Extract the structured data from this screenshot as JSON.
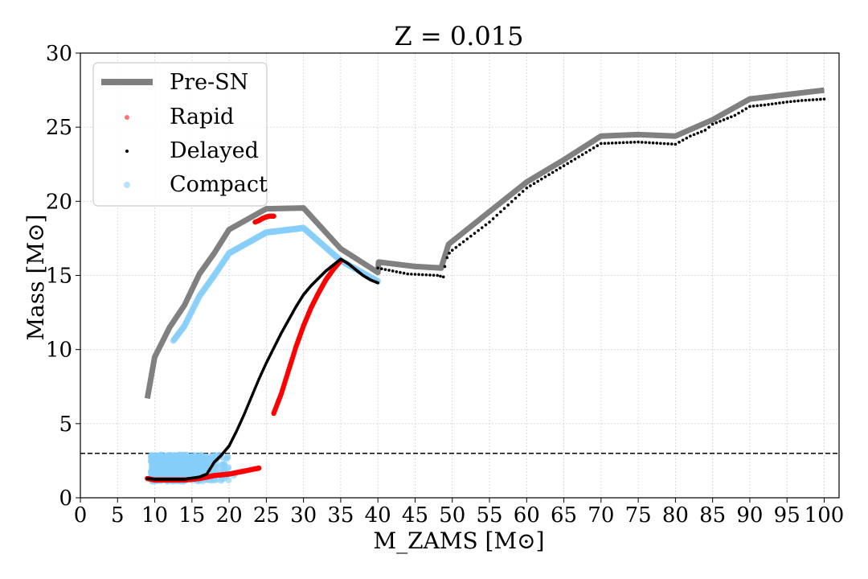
{
  "chart_data": {
    "type": "line",
    "title": "Z = 0.015",
    "xlabel": "M_ZAMS [M⊙]",
    "ylabel": "Mass [M⊙]",
    "xlim": [
      0,
      102
    ],
    "ylim": [
      0,
      30
    ],
    "xticks": [
      0,
      5,
      10,
      15,
      20,
      25,
      30,
      35,
      40,
      45,
      50,
      55,
      60,
      65,
      70,
      75,
      80,
      85,
      90,
      95,
      100
    ],
    "yticks": [
      0,
      5,
      10,
      15,
      20,
      25,
      30
    ],
    "grid": true,
    "legend_position": "top-left",
    "reference_line": {
      "y": 3,
      "style": "dashed",
      "color": "#000000"
    },
    "series": [
      {
        "name": "Pre-SN",
        "kind": "line",
        "color": "#808080",
        "points": [
          [
            9,
            6.7
          ],
          [
            10,
            9.5
          ],
          [
            12,
            11.5
          ],
          [
            14,
            13
          ],
          [
            16,
            15.1
          ],
          [
            18,
            16.5
          ],
          [
            20,
            18.1
          ],
          [
            25,
            19.5
          ],
          [
            30,
            19.55
          ],
          [
            35,
            16.8
          ],
          [
            40,
            15.2
          ],
          [
            40.1,
            15.9
          ],
          [
            45,
            15.6
          ],
          [
            48.5,
            15.5
          ],
          [
            49.5,
            17.1
          ],
          [
            55,
            19.3
          ],
          [
            60,
            21.3
          ],
          [
            65,
            22.8
          ],
          [
            70,
            24.4
          ],
          [
            75,
            24.5
          ],
          [
            80,
            24.4
          ],
          [
            85,
            25.5
          ],
          [
            90,
            26.9
          ],
          [
            95,
            27.2
          ],
          [
            100,
            27.5
          ]
        ]
      },
      {
        "name": "Rapid",
        "kind": "scatter",
        "color": "#ff0000",
        "segments": [
          [
            [
              9,
              1.3
            ],
            [
              10,
              1.2
            ],
            [
              12,
              1.2
            ],
            [
              14,
              1.2
            ],
            [
              16,
              1.3
            ],
            [
              18,
              1.5
            ],
            [
              20,
              1.6
            ],
            [
              22,
              1.8
            ],
            [
              24,
              2.0
            ]
          ],
          [
            [
              23.5,
              18.6
            ],
            [
              24,
              18.7
            ],
            [
              24.5,
              18.85
            ],
            [
              25,
              18.95
            ],
            [
              25.5,
              19.0
            ],
            [
              26,
              19.0
            ]
          ],
          [
            [
              26,
              5.7
            ],
            [
              27,
              7.0
            ],
            [
              28,
              8.6
            ],
            [
              29,
              10.2
            ],
            [
              30,
              11.6
            ],
            [
              31,
              12.8
            ],
            [
              32,
              13.8
            ],
            [
              33,
              14.7
            ],
            [
              34,
              15.4
            ],
            [
              35,
              16.0
            ]
          ]
        ]
      },
      {
        "name": "Delayed",
        "kind": "scatter",
        "color": "#000000",
        "segments": [
          [
            [
              9,
              1.3
            ],
            [
              10,
              1.25
            ],
            [
              12,
              1.25
            ],
            [
              14,
              1.25
            ],
            [
              16,
              1.4
            ],
            [
              17,
              1.6
            ],
            [
              18,
              2.4
            ],
            [
              19,
              2.9
            ],
            [
              20,
              3.5
            ],
            [
              21,
              4.5
            ],
            [
              22,
              5.6
            ],
            [
              23,
              6.8
            ],
            [
              24,
              8.0
            ],
            [
              25,
              9.1
            ],
            [
              26,
              10.1
            ],
            [
              27,
              11.1
            ],
            [
              28,
              12.0
            ],
            [
              29,
              12.9
            ],
            [
              30,
              13.7
            ],
            [
              31,
              14.3
            ],
            [
              32,
              14.8
            ],
            [
              33,
              15.3
            ],
            [
              34,
              15.7
            ],
            [
              35,
              16.1
            ],
            [
              36,
              15.8
            ],
            [
              37,
              15.4
            ],
            [
              38,
              15.0
            ],
            [
              39,
              14.7
            ],
            [
              40,
              14.5
            ]
          ],
          [
            [
              40,
              15.5
            ],
            [
              42,
              15.3
            ],
            [
              44,
              15.1
            ],
            [
              46,
              15.05
            ],
            [
              48,
              15.0
            ],
            [
              48.8,
              14.9
            ],
            [
              49,
              15.6
            ],
            [
              49.3,
              16.2
            ],
            [
              49.6,
              16.5
            ],
            [
              50,
              16.7
            ],
            [
              55,
              18.6
            ],
            [
              60,
              20.9
            ],
            [
              65,
              22.4
            ],
            [
              70,
              23.9
            ],
            [
              75,
              24.0
            ],
            [
              80,
              23.85
            ],
            [
              82,
              24.4
            ],
            [
              84,
              24.8
            ],
            [
              85,
              25.2
            ],
            [
              88,
              25.8
            ],
            [
              90,
              26.4
            ],
            [
              92,
              26.5
            ],
            [
              95,
              26.7
            ],
            [
              97,
              26.8
            ],
            [
              100,
              26.9
            ]
          ]
        ]
      },
      {
        "name": "Compact",
        "kind": "scatter",
        "color": "#87cefa",
        "segments": [
          [
            [
              12.5,
              10.6
            ],
            [
              14,
              11.6
            ],
            [
              16,
              13.6
            ],
            [
              18,
              15
            ],
            [
              20,
              16.5
            ],
            [
              25,
              17.9
            ],
            [
              30,
              18.2
            ],
            [
              35,
              16
            ],
            [
              40,
              14.6
            ]
          ]
        ],
        "cloud": {
          "x_range": [
            9.5,
            21
          ],
          "y_range": [
            1.1,
            2.9
          ]
        }
      }
    ]
  }
}
